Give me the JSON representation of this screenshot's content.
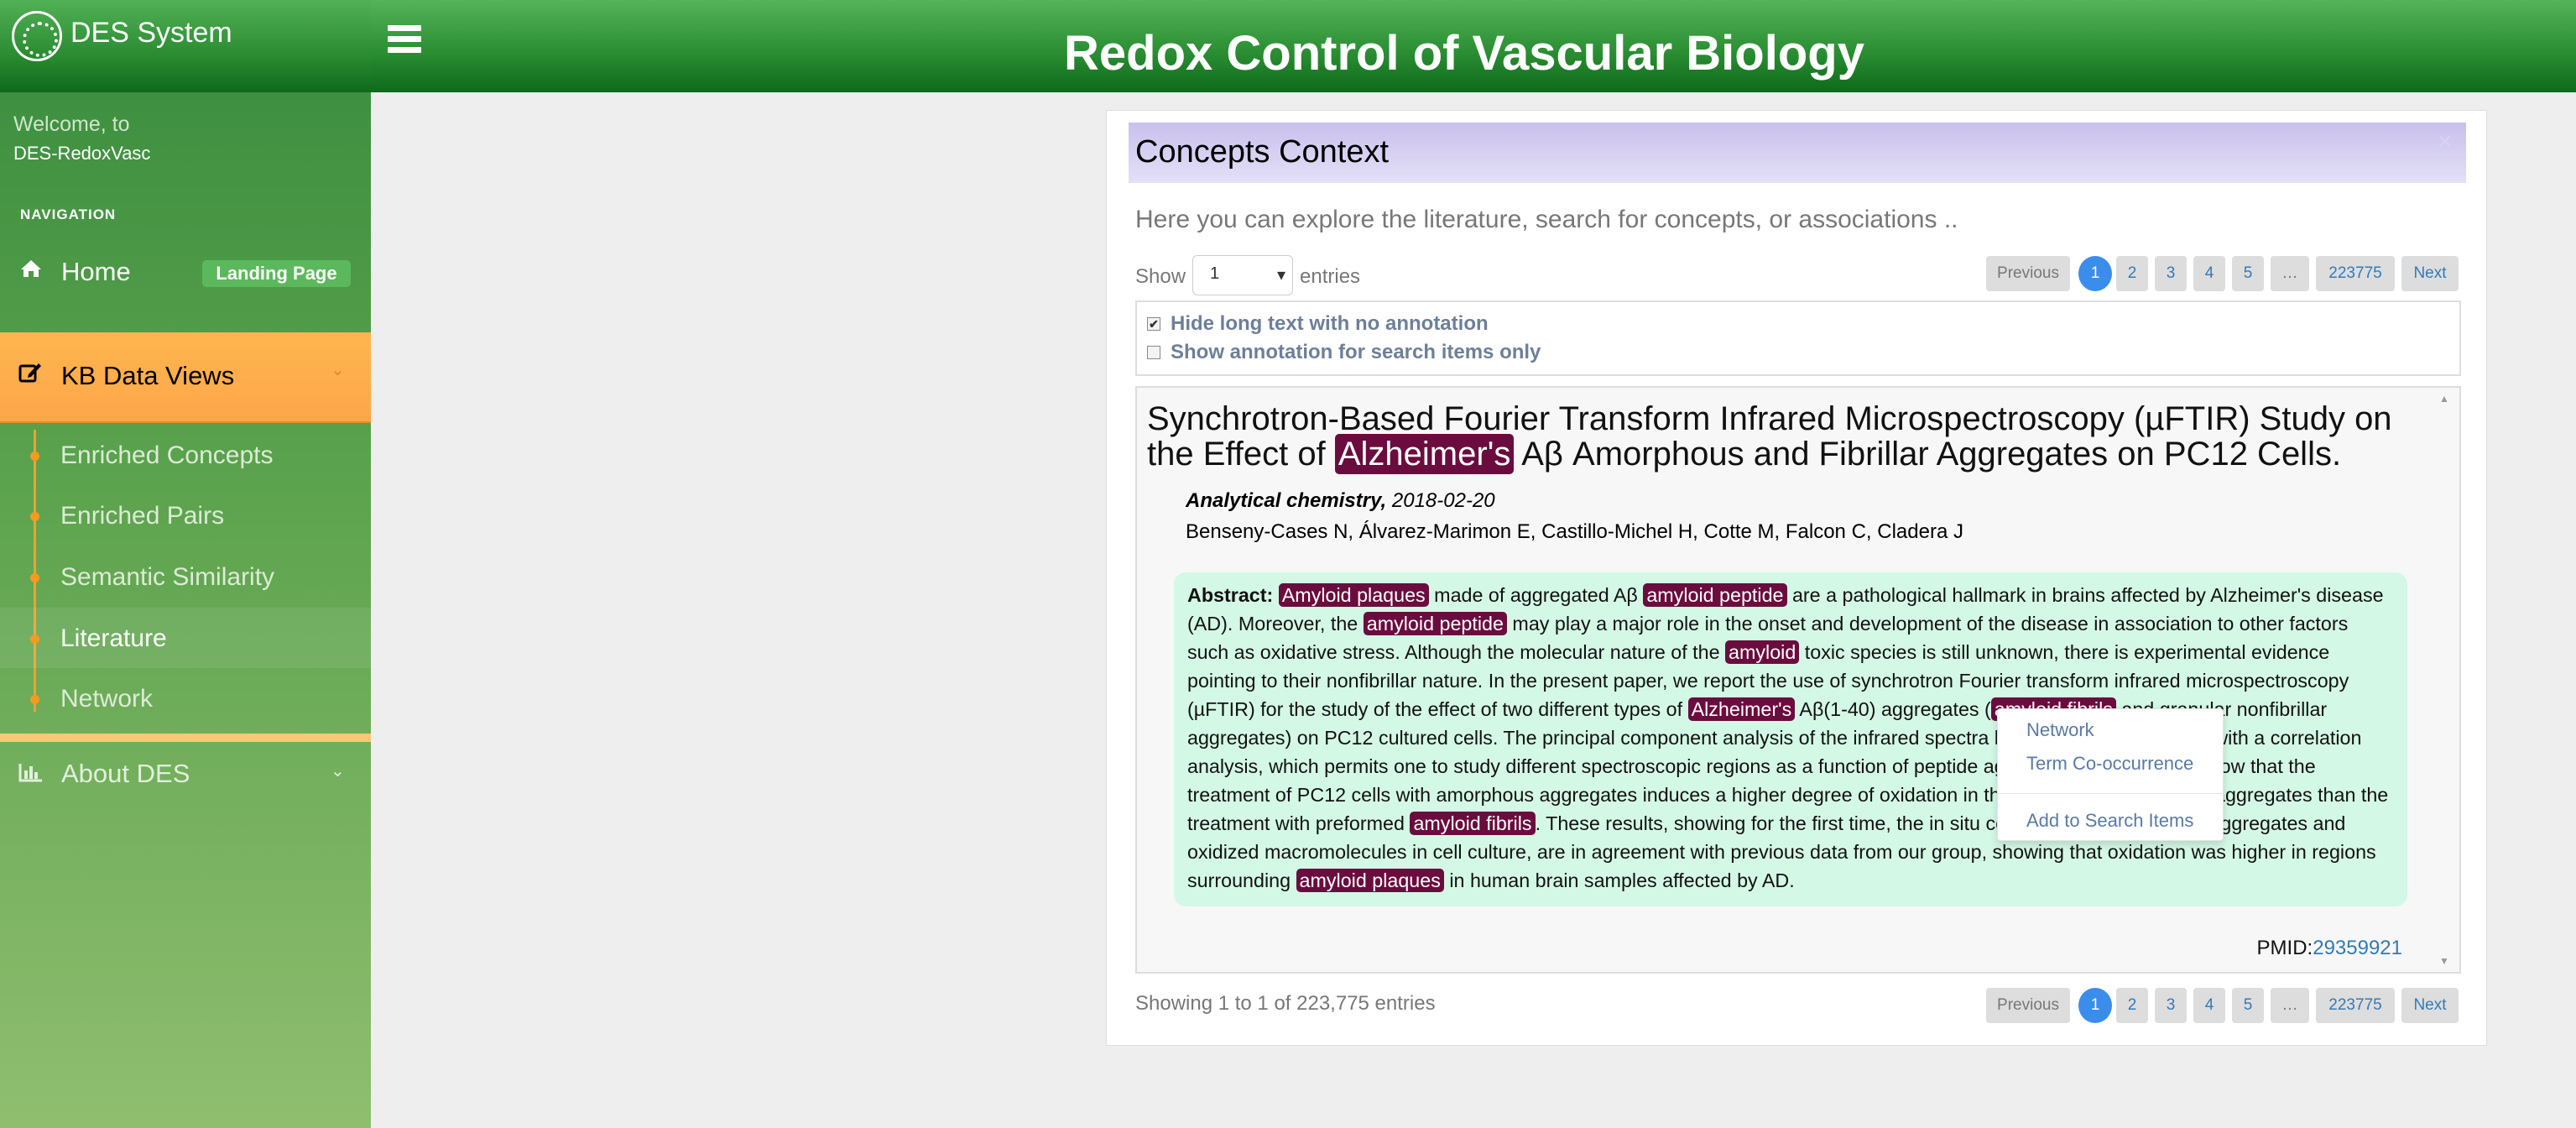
{
  "app": {
    "logo_text": "DES System",
    "title": "Redox Control of Vascular Biology"
  },
  "sidebar": {
    "welcome_line1": "Welcome, to",
    "welcome_line2": "DES-RedoxVasc",
    "nav_header": "NAVIGATION",
    "home_label": "Home",
    "home_badge": "Landing Page",
    "kb_label": "KB Data Views",
    "kb_items": [
      {
        "label": "Enriched Concepts"
      },
      {
        "label": "Enriched Pairs"
      },
      {
        "label": "Semantic Similarity"
      },
      {
        "label": "Literature"
      },
      {
        "label": "Network"
      }
    ],
    "active_item": "Literature",
    "about_label": "About DES",
    "accent_color": "#fda64a"
  },
  "panel": {
    "title": "Concepts Context",
    "close": "×",
    "intro": "Here you can explore the literature, search for concepts, or associations ..",
    "show_label": "Show",
    "entries_value": "1",
    "entries_label": "entries",
    "pager": {
      "previous": "Previous",
      "pages": [
        "1",
        "2",
        "3",
        "4",
        "5",
        "…",
        "223775"
      ],
      "next": "Next",
      "current": "1"
    },
    "option_hide": "Hide long text with no annotation",
    "option_show": "Show annotation for search items only",
    "option_hide_checked": "✔",
    "footer": "Showing 1 to 1 of 223,775 entries"
  },
  "article": {
    "title_part1": "Synchrotron-Based Fourier Transform Infrared Microspectroscopy (µFTIR) Study on the Effect of ",
    "title_highlight": "Alzheimer's",
    "title_part2": " Aβ Amorphous and Fibrillar Aggregates on PC12 Cells.",
    "journal": "Analytical chemistry,",
    "date": "2018-02-20",
    "authors": "Benseny-Cases N, Álvarez-Marimon E, Castillo-Michel H, Cotte M, Falcon C, Cladera J",
    "abstract_label": "Abstract:",
    "abstract_segments": [
      {
        "text": "Amyloid plaques",
        "hl": true
      },
      {
        "text": " made of aggregated Aβ ",
        "hl": false
      },
      {
        "text": "amyloid peptide",
        "hl": true
      },
      {
        "text": " are a pathological hallmark in brains affected by Alzheimer's disease (AD). Moreover, the ",
        "hl": false
      },
      {
        "text": "amyloid peptide",
        "hl": true
      },
      {
        "text": " may play a major role in the onset and development of the disease in association to other factors such as oxidative stress. Although the molecular nature of the ",
        "hl": false
      },
      {
        "text": "amyloid",
        "hl": true
      },
      {
        "text": " toxic species is still unknown, there is experimental evidence pointing to their nonfibrillar nature. In the present paper, we report the use of synchrotron Fourier transform infrared microspectroscopy (µFTIR) for the study of the effect of two different types of ",
        "hl": false
      },
      {
        "text": "Alzheimer's",
        "hl": true
      },
      {
        "text": " Aβ(1-40) aggregates (",
        "hl": false
      },
      {
        "text": "amyloid fibrils",
        "hl": true
      },
      {
        "text": " and granular nonfibrillar aggregates) on PC12 cultured cells. The principal component analysis of the infrared spectra has been complemented with a correlation analysis, which permits one to study different spectroscopic regions as a function of peptide aggregation. The results show that the treatment of PC12 cells with amorphous aggregates induces a higher degree of oxidation in the vicinity of the ",
        "hl": false
      },
      {
        "text": "amyloid",
        "hl": true
      },
      {
        "text": " aggregates than the treatment with preformed ",
        "hl": false
      },
      {
        "text": "amyloid fibrils",
        "hl": true
      },
      {
        "text": ". These results, showing for the first time, the in situ colocalization of ",
        "hl": false
      },
      {
        "text": "amyloid",
        "hl": true
      },
      {
        "text": " aggregates and oxidized macromolecules in cell culture, are in agreement with previous data from our group, showing that oxidation was higher in regions surrounding ",
        "hl": false
      },
      {
        "text": "amyloid plaques",
        "hl": true
      },
      {
        "text": " in human brain samples affected by AD.",
        "hl": false
      }
    ],
    "highlight_color": "#6b0c3e",
    "pmid_label": "PMID:",
    "pmid": "29359921"
  },
  "context_menu": {
    "items": [
      "Network",
      "Term Co-occurrence",
      "Add to Search Items"
    ]
  }
}
